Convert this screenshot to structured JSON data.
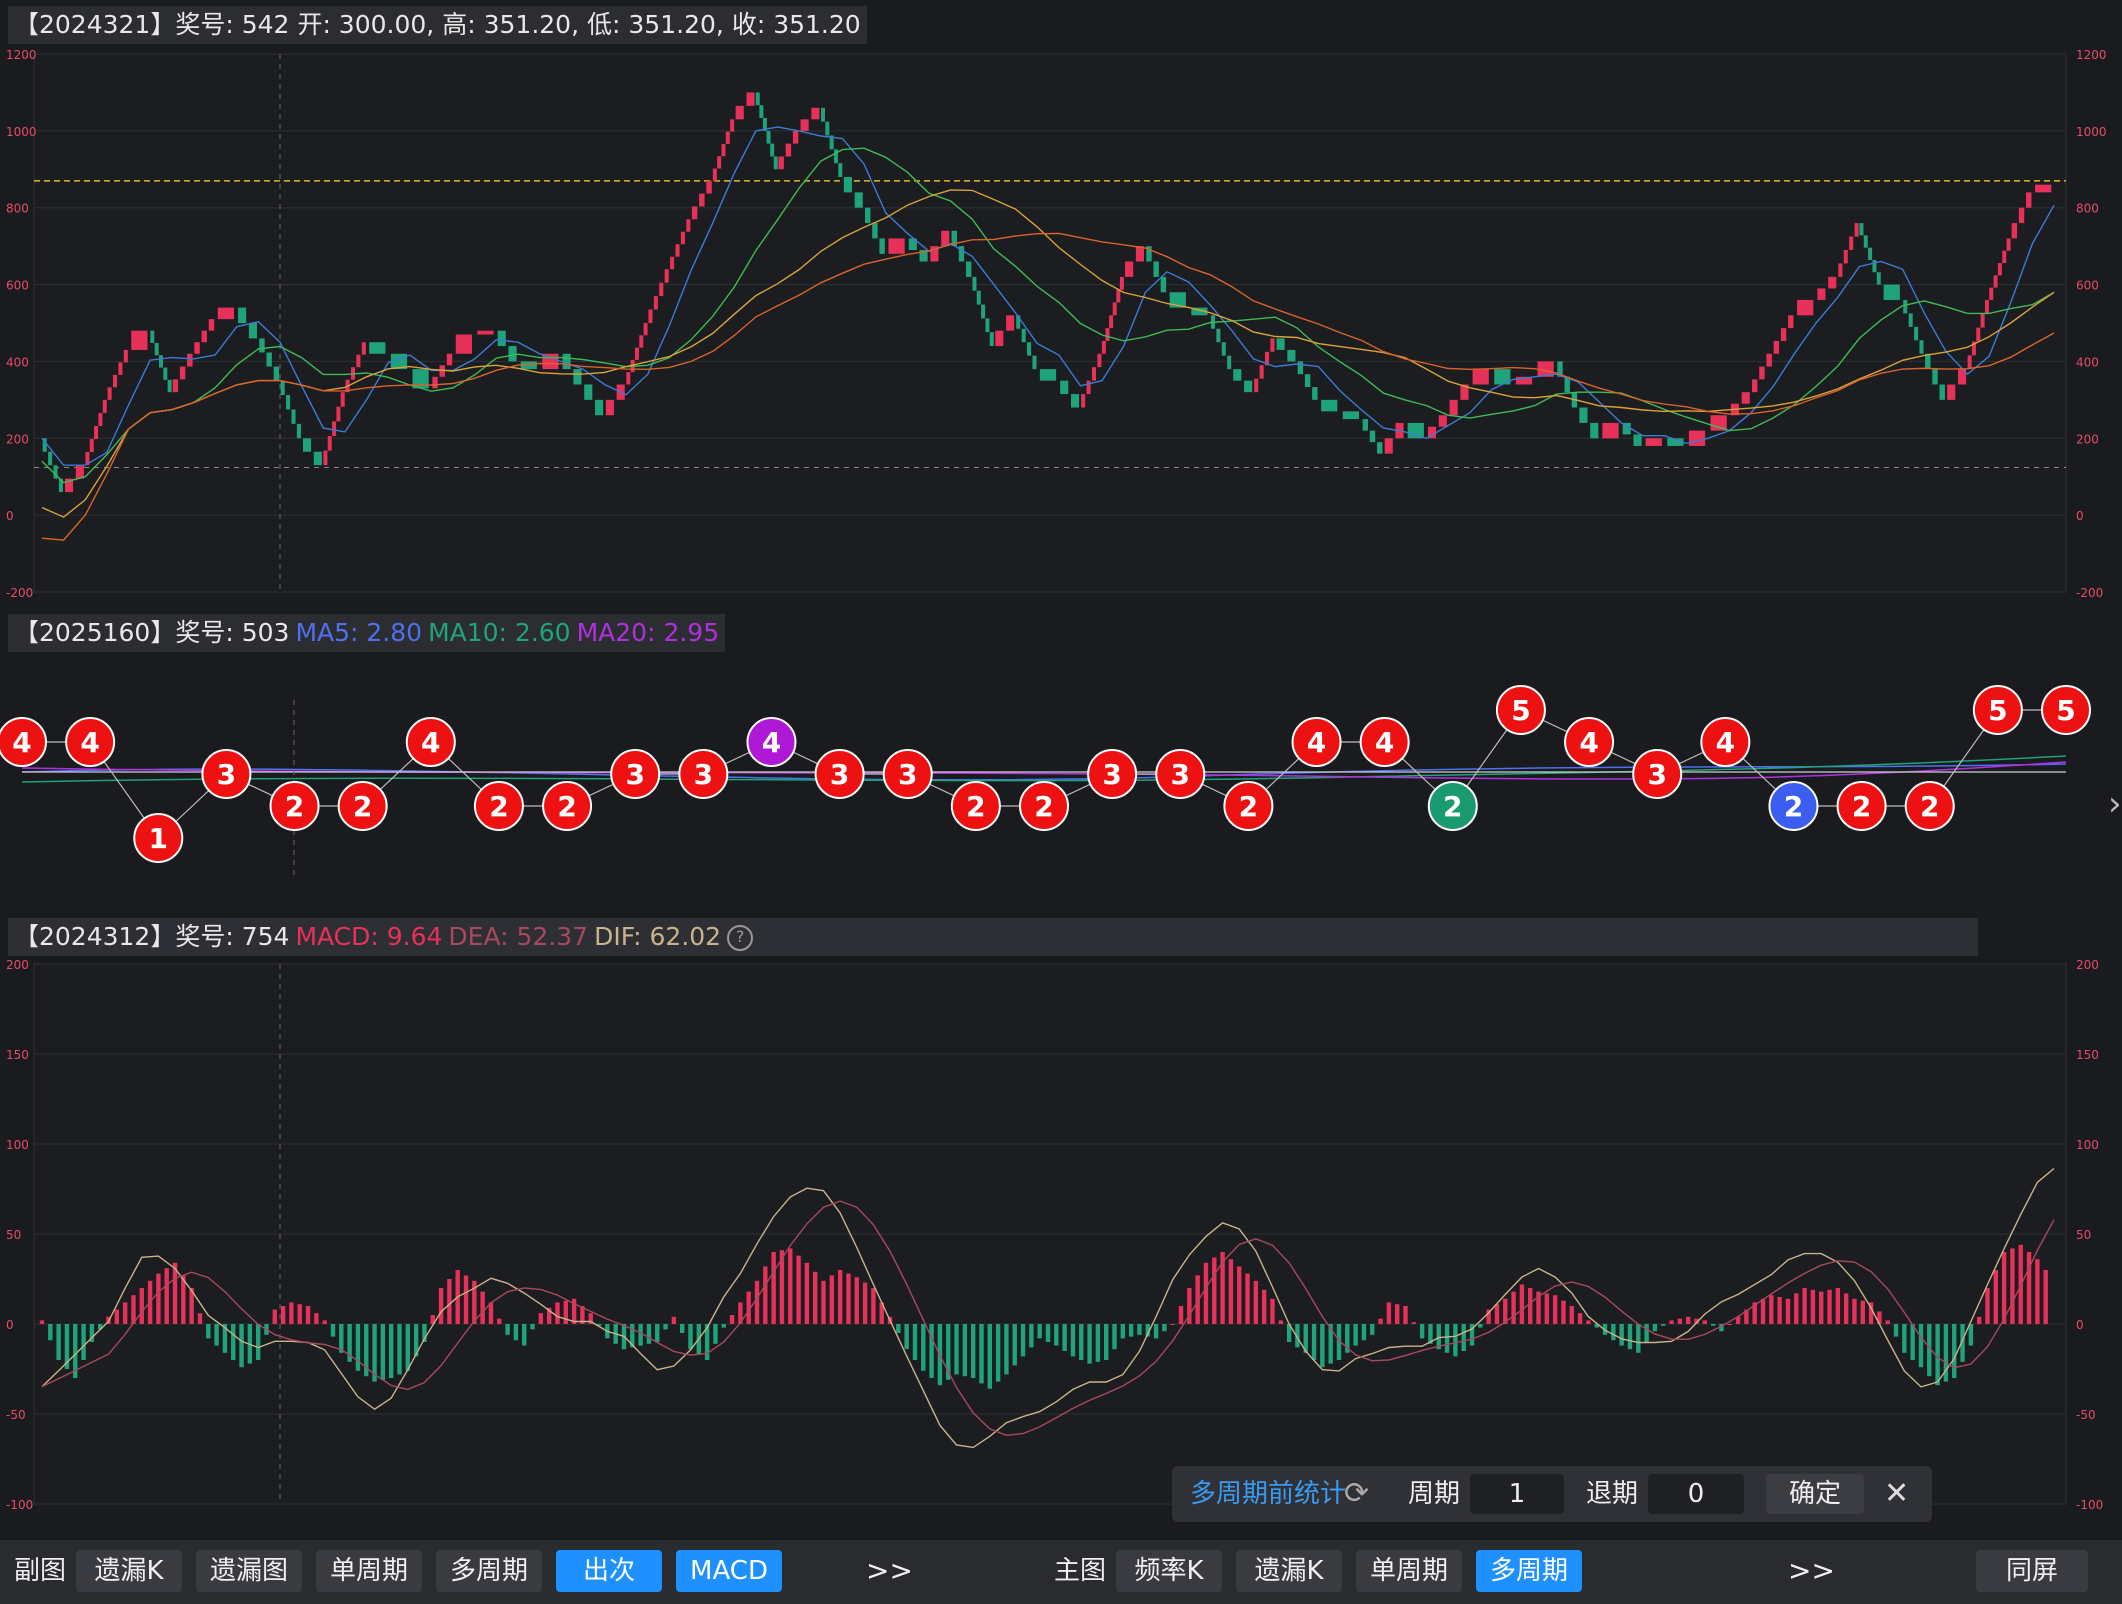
{
  "top_header": {
    "title": "【2024321】奖号: 542",
    "open": "开: 300.00,",
    "high": "高: 351.20,",
    "low": "低: 351.20,",
    "close": "收: 351.20"
  },
  "mid_header": {
    "title": "【2025160】奖号: 503",
    "ma5": "MA5: 2.80",
    "ma10": "MA10: 2.60",
    "ma20": "MA20: 2.95"
  },
  "bot_header": {
    "title": "【2024312】奖号: 754",
    "macd": "MACD: 9.64",
    "dea": "DEA: 52.37",
    "dif": "DIF: 62.02",
    "help": "?"
  },
  "colors": {
    "up": "#e8315a",
    "down": "#1fa37a",
    "ma1": "#3a7bd5",
    "ma2": "#3dbb52",
    "ma3": "#d9a23a",
    "ma4": "#d9632a",
    "ma5txt": "#4f6ff0",
    "ma10txt": "#1fa37a",
    "ma20txt": "#b030e0"
  },
  "top_axis": {
    "left_ticks": [
      "1200",
      "1000",
      "800",
      "600",
      "400",
      "200",
      "0",
      "-200"
    ],
    "right_ticks": [
      "1200",
      "1000",
      "800",
      "600",
      "400",
      "200",
      "0",
      "-200"
    ]
  },
  "bot_axis": {
    "left_ticks": [
      "200",
      "150",
      "100",
      "50",
      "0",
      "-50",
      "-100"
    ],
    "right_ticks": [
      "200",
      "150",
      "100",
      "50",
      "0",
      "-50",
      "-100"
    ]
  },
  "chart_data": [
    {
      "type": "line",
      "name_cn": "主图K线",
      "close_path": [
        200,
        60,
        130,
        300,
        430,
        480,
        320,
        420,
        510,
        540,
        460,
        350,
        200,
        130,
        320,
        450,
        420,
        380,
        330,
        420,
        470,
        480,
        400,
        380,
        420,
        340,
        260,
        340,
        500,
        640,
        770,
        870,
        1030,
        1100,
        900,
        1000,
        1060,
        880,
        800,
        680,
        720,
        660,
        740,
        620,
        440,
        520,
        380,
        350,
        280,
        420,
        620,
        700,
        580,
        540,
        520,
        380,
        320,
        460,
        400,
        300,
        270,
        250,
        160,
        240,
        200,
        260,
        340,
        380,
        340,
        360,
        400,
        280,
        200,
        240,
        180,
        200,
        180,
        220,
        260,
        320,
        420,
        520,
        560,
        620,
        760,
        600,
        560,
        420,
        300,
        380,
        560,
        720,
        840,
        860
      ]
    },
    {
      "type": "scatter",
      "name_cn": "出次",
      "points": [
        [
          1,
          4
        ],
        [
          2,
          4
        ],
        [
          3,
          1
        ],
        [
          4,
          3
        ],
        [
          5,
          2
        ],
        [
          6,
          2
        ],
        [
          7,
          4
        ],
        [
          8,
          2
        ],
        [
          9,
          2
        ],
        [
          10,
          3
        ],
        [
          11,
          3
        ],
        [
          12,
          4
        ],
        [
          13,
          3
        ],
        [
          14,
          3
        ],
        [
          15,
          2
        ],
        [
          16,
          2
        ],
        [
          17,
          3
        ],
        [
          18,
          3
        ],
        [
          19,
          2
        ],
        [
          20,
          4
        ],
        [
          21,
          4
        ],
        [
          22,
          2
        ],
        [
          23,
          5
        ],
        [
          24,
          4
        ],
        [
          25,
          3
        ],
        [
          26,
          4
        ],
        [
          27,
          2
        ],
        [
          28,
          2
        ],
        [
          29,
          2
        ],
        [
          30,
          5
        ],
        [
          31,
          5
        ]
      ],
      "labels": [
        "4",
        "4",
        "1",
        "3",
        "2",
        "2",
        "4",
        "2",
        "2",
        "3",
        "3",
        "4",
        "3",
        "3",
        "2",
        "2",
        "3",
        "3",
        "2",
        "4",
        "4",
        "2",
        "5",
        "4",
        "3",
        "4",
        "2",
        "2",
        "2",
        "5",
        "5"
      ],
      "special": {
        "12": "#b018d8",
        "22": "#1a9a70",
        "27": "#3c5ef0"
      }
    },
    {
      "type": "bar",
      "name_cn": "MACD",
      "ylim": [
        -100,
        200
      ],
      "hist": [
        2,
        -20,
        -30,
        -10,
        4,
        12,
        20,
        28,
        34,
        20,
        -8,
        -16,
        -24,
        -20,
        8,
        12,
        10,
        2,
        -16,
        -26,
        -32,
        -30,
        -26,
        -10,
        20,
        30,
        24,
        12,
        -6,
        -12,
        6,
        12,
        14,
        6,
        -8,
        -14,
        -12,
        -10,
        4,
        -14,
        -20,
        -2,
        12,
        24,
        40,
        42,
        34,
        24,
        30,
        26,
        20,
        4,
        -14,
        -26,
        -34,
        -28,
        -30,
        -36,
        -28,
        -18,
        -8,
        -12,
        -18,
        -22,
        -20,
        -8,
        -6,
        -8,
        0,
        20,
        34,
        40,
        32,
        24,
        14,
        -10,
        -16,
        -24,
        -20,
        -12,
        -6,
        12,
        10,
        -8,
        -14,
        -18,
        -12,
        8,
        14,
        22,
        18,
        16,
        10,
        2,
        -6,
        -12,
        -16,
        -4,
        2,
        4,
        2,
        -4,
        4,
        12,
        16,
        14,
        20,
        18,
        20,
        14,
        12,
        2,
        -16,
        -24,
        -34,
        -30,
        -12,
        20,
        40,
        44,
        36,
        24
      ]
    }
  ],
  "mid_chart_labels": {
    "bubbles": "出次"
  },
  "stat_panel": {
    "title": "多周期前统计",
    "period_label": "周期",
    "period_value": "1",
    "back_label": "退期",
    "back_value": "0",
    "confirm": "确定"
  },
  "bottom_bar": {
    "sub_label": "副图",
    "sub_buttons": [
      "遗漏K",
      "遗漏图",
      "单周期",
      "多周期",
      "出次",
      "MACD"
    ],
    "more1": ">>",
    "main_label": "主图",
    "main_buttons": [
      "频率K",
      "遗漏K",
      "单周期",
      "多周期"
    ],
    "more2": ">>",
    "same_screen": "同屏"
  }
}
